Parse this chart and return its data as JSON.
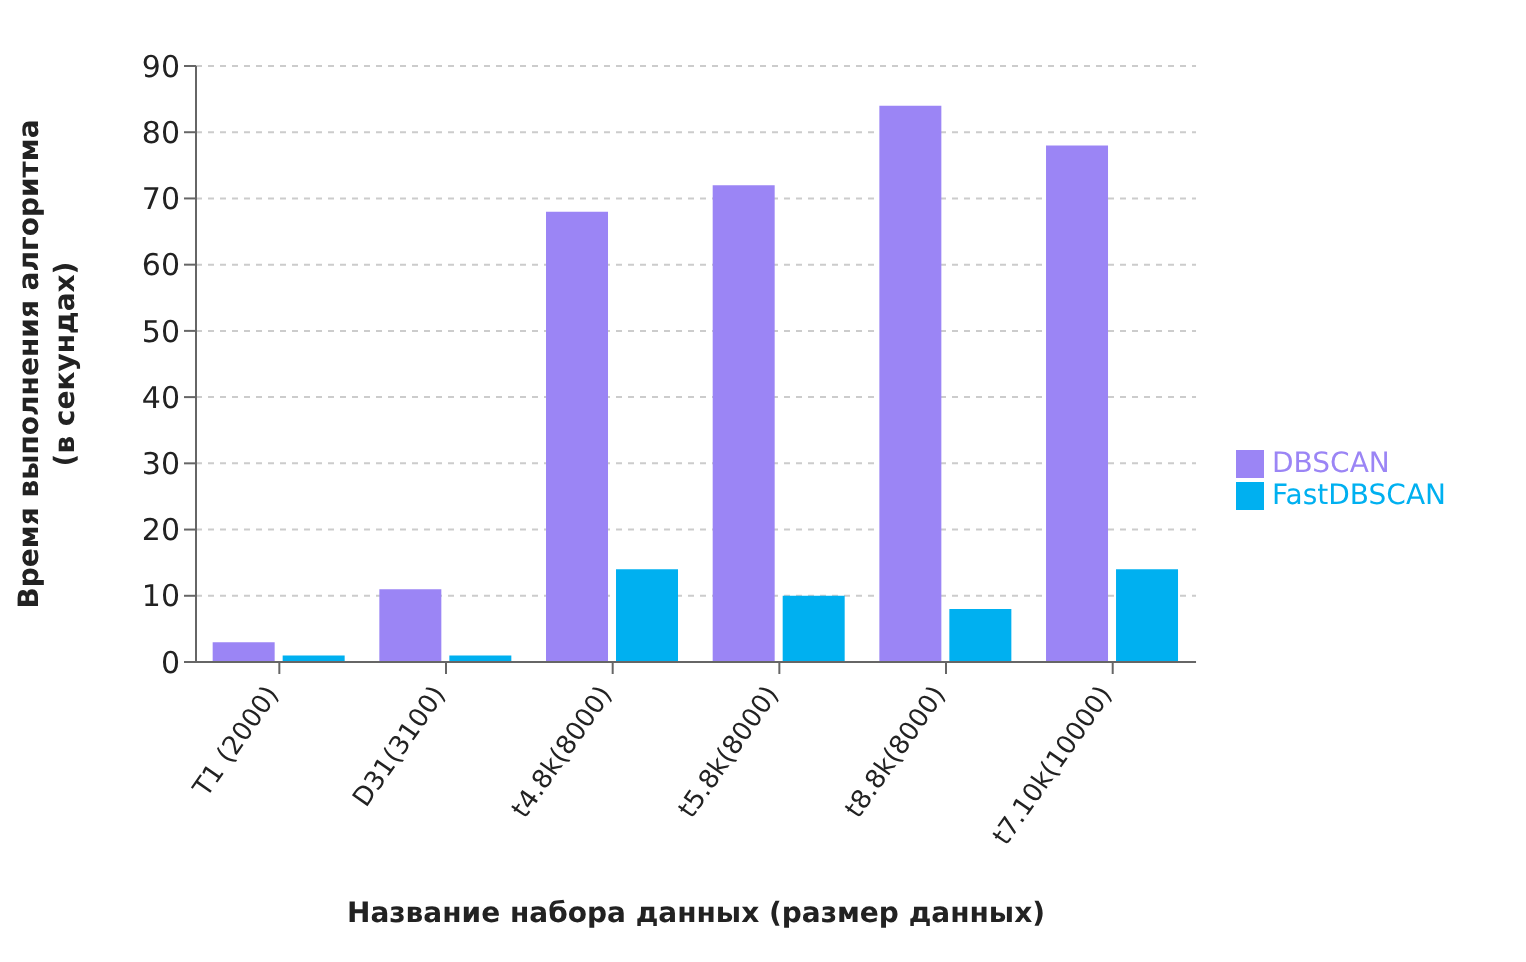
{
  "chart_data": {
    "type": "bar",
    "xlabel": "Название набора данных (размер данных)",
    "ylabel": "Время выполнения алгоритма (в секундах)",
    "categories": [
      "T1 (2000)",
      "D31(3100)",
      "t4.8k(8000)",
      "t5.8k(8000)",
      "t8.8k(8000)",
      "t7.10k(10000)"
    ],
    "series": [
      {
        "name": "DBSCAN",
        "color": "#9b85f5",
        "values": [
          3,
          11,
          68,
          72,
          84,
          78
        ]
      },
      {
        "name": "FastDBSCAN",
        "color": "#00b0f0",
        "values": [
          1,
          1,
          14,
          10,
          8,
          14
        ]
      }
    ],
    "ylim": [
      0,
      90
    ],
    "yticks": [
      0,
      10,
      20,
      30,
      40,
      50,
      60,
      70,
      80,
      90
    ],
    "grid": "y",
    "legend": "right"
  }
}
